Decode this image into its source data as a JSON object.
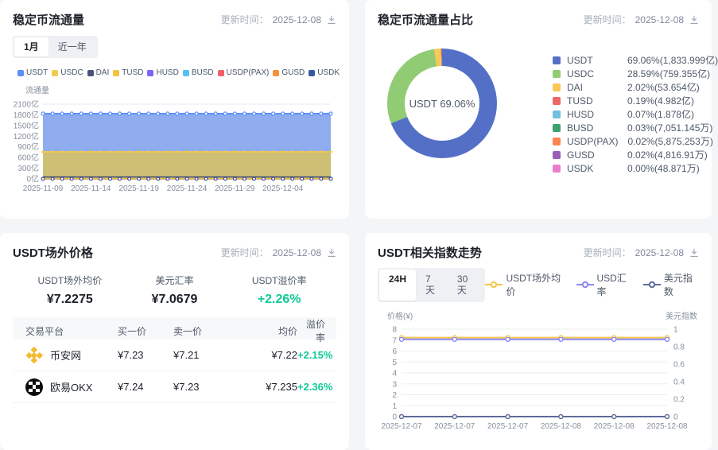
{
  "update": {
    "label": "更新时间：",
    "date": "2025-12-08"
  },
  "circulation_panel": {
    "title": "稳定币流通量",
    "tabs": [
      {
        "label": "1月",
        "active": true
      },
      {
        "label": "近一年",
        "active": false
      }
    ]
  },
  "share_panel": {
    "title": "稳定币流通量占比",
    "center_label": "USDT 69.06%"
  },
  "otc_panel": {
    "title": "USDT场外价格",
    "stats": [
      {
        "label": "USDT场外均价",
        "value": "¥7.2275",
        "positive": false
      },
      {
        "label": "美元汇率",
        "value": "¥7.0679",
        "positive": false
      },
      {
        "label": "USDT溢价率",
        "value": "+2.26%",
        "positive": true
      }
    ],
    "table": {
      "headers": [
        "交易平台",
        "买一价",
        "卖一价",
        "均价",
        "溢价率"
      ],
      "rows": [
        {
          "platform": "币安网",
          "icon": "binance-logo-icon",
          "buy": "¥7.23",
          "sell": "¥7.21",
          "avg": "¥7.22",
          "premium": "+2.15%"
        },
        {
          "platform": "欧易OKX",
          "icon": "okx-logo-icon",
          "buy": "¥7.24",
          "sell": "¥7.23",
          "avg": "¥7.235",
          "premium": "+2.36%"
        }
      ]
    }
  },
  "index_panel": {
    "title": "USDT相关指数走势",
    "tabs": [
      {
        "label": "24H",
        "active": true
      },
      {
        "label": "7天",
        "active": false
      },
      {
        "label": "30天",
        "active": false
      }
    ]
  },
  "colors": {
    "positive_green": "#0ECB96",
    "page_bg": "#f4f5f7"
  },
  "chart_data": [
    {
      "id": "circulation",
      "type": "area",
      "title": "稳定币流通量",
      "ylabel": "流通量",
      "ylim": [
        0,
        2100
      ],
      "yticks": [
        0,
        300,
        600,
        900,
        1200,
        1500,
        1800,
        2100
      ],
      "ytick_suffix": "亿",
      "x_labels": [
        "2025-11-09",
        "2025-11-14",
        "2025-11-19",
        "2025-11-24",
        "2025-11-29",
        "2025-12-04"
      ],
      "x_label_step": 5,
      "points": 31,
      "grid": true,
      "note": "all series flat over the month window; value in 亿",
      "series": [
        {
          "name": "USDT",
          "color": "#5B8FF9",
          "fill": "#86A5EE",
          "value": 1833.999,
          "area": true
        },
        {
          "name": "USDC",
          "color": "#EFCC4F",
          "fill": "#D3C169",
          "value": 759.355,
          "area": true
        },
        {
          "name": "DAI",
          "color": "#49537E",
          "value": 53.654,
          "area": false
        },
        {
          "name": "TUSD",
          "color": "#F5C13D",
          "value": 4.982,
          "area": false
        },
        {
          "name": "HUSD",
          "color": "#7B66F9",
          "value": 1.878,
          "area": false
        },
        {
          "name": "BUSD",
          "color": "#54C2F0",
          "value": 0.705,
          "area": false
        },
        {
          "name": "USDP(PAX)",
          "color": "#F25E67",
          "value": 0.588,
          "area": false
        },
        {
          "name": "GUSD",
          "color": "#F6903D",
          "value": 0.482,
          "area": false
        },
        {
          "name": "USDK",
          "color": "#3858A6",
          "value": 0.005,
          "area": false
        }
      ]
    },
    {
      "id": "share",
      "type": "pie",
      "title": "稳定币流通量占比",
      "center_label": "USDT 69.06%",
      "legend_position": "right",
      "slices": [
        {
          "name": "USDT",
          "color": "#5470C6",
          "pct": 69.06,
          "label": "69.06%(1,833.999亿)"
        },
        {
          "name": "USDC",
          "color": "#91CC75",
          "pct": 28.59,
          "label": "28.59%(759.355亿)"
        },
        {
          "name": "DAI",
          "color": "#FAC858",
          "pct": 2.02,
          "label": "2.02%(53.654亿)"
        },
        {
          "name": "TUSD",
          "color": "#EE6666",
          "pct": 0.19,
          "label": "0.19%(4.982亿)"
        },
        {
          "name": "HUSD",
          "color": "#73C0DE",
          "pct": 0.07,
          "label": "0.07%(1.878亿)"
        },
        {
          "name": "BUSD",
          "color": "#3BA272",
          "pct": 0.03,
          "label": "0.03%(7,051.145万)"
        },
        {
          "name": "USDP(PAX)",
          "color": "#FC8452",
          "pct": 0.02,
          "label": "0.02%(5,875.253万)"
        },
        {
          "name": "GUSD",
          "color": "#9A60B4",
          "pct": 0.02,
          "label": "0.02%(4,816.91万)"
        },
        {
          "name": "USDK",
          "color": "#EA7CCC",
          "pct": 0.0,
          "label": "0.00%(48.871万)"
        }
      ]
    },
    {
      "id": "index",
      "type": "line",
      "title": "USDT相关指数走势",
      "left_axis": {
        "name": "价格(¥)",
        "ticks": [
          0,
          1,
          2,
          3,
          4,
          5,
          6,
          7,
          8
        ],
        "lim": [
          0,
          8
        ]
      },
      "right_axis": {
        "name": "美元指数",
        "ticks": [
          0,
          0.2,
          0.4,
          0.6,
          0.8,
          1
        ],
        "lim": [
          0,
          1
        ]
      },
      "x": [
        "2025-12-07",
        "2025-12-07",
        "2025-12-07",
        "2025-12-08",
        "2025-12-08",
        "2025-12-08"
      ],
      "series": [
        {
          "name": "USDT场外均价",
          "color": "#F6C54E",
          "axis": "left",
          "values": [
            7.2275,
            7.2275,
            7.2275,
            7.2275,
            7.2275,
            7.2275
          ]
        },
        {
          "name": "USD汇率",
          "color": "#8C88F0",
          "axis": "left",
          "values": [
            7.0679,
            7.0679,
            7.0679,
            7.0679,
            7.0679,
            7.0679
          ]
        },
        {
          "name": "美元指数",
          "color": "#5D6B98",
          "axis": "right",
          "values": [
            0,
            0,
            0,
            0,
            0,
            0
          ]
        }
      ]
    }
  ]
}
